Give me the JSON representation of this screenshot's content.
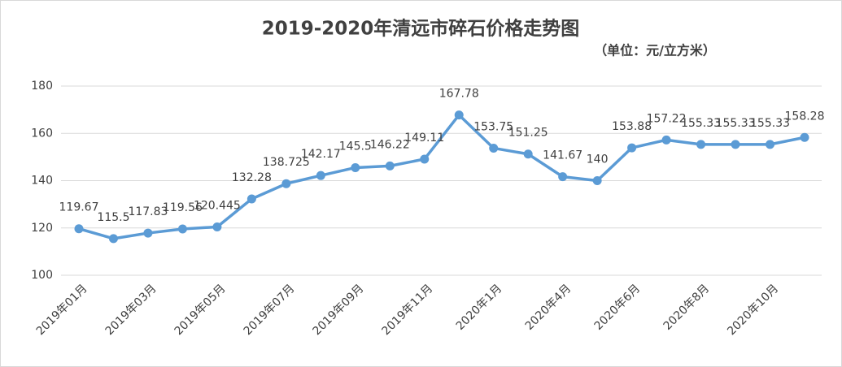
{
  "chart_data": {
    "type": "line",
    "title": "2019-2020年清远市碎石价格走势图",
    "subtitle": "（单位：元/立方米）",
    "categories": [
      "2019年01月",
      null,
      "2019年03月",
      null,
      "2019年05月",
      null,
      "2019年07月",
      null,
      "2019年09月",
      null,
      "2019年11月",
      null,
      "2020年1月",
      null,
      "2020年4月",
      null,
      "2020年6月",
      null,
      "2020年8月",
      null,
      "2020年10月",
      null
    ],
    "series": [
      {
        "name": "碎石价格",
        "color": "#5b9bd5",
        "values": [
          119.67,
          115.5,
          117.83,
          119.56,
          120.445,
          132.28,
          138.725,
          142.17,
          145.5,
          146.22,
          149.11,
          167.78,
          153.75,
          151.25,
          141.67,
          140,
          153.88,
          157.22,
          155.33,
          155.33,
          155.33,
          158.28
        ]
      }
    ],
    "ylim": [
      100,
      180
    ],
    "yticks": [
      100,
      120,
      140,
      160,
      180
    ],
    "grid": true
  }
}
